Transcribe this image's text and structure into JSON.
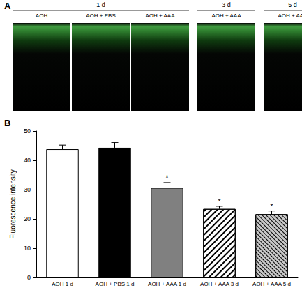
{
  "panel_a": {
    "label": "A",
    "groups": [
      {
        "label": "1 d",
        "images": [
          "AOH",
          "AOH + PBS",
          "AOH + AAA"
        ]
      },
      {
        "label": "3 d",
        "images": [
          "AOH + AAA"
        ]
      },
      {
        "label": "5 d",
        "images": [
          "AOH + AAA"
        ]
      }
    ]
  },
  "chart_data": {
    "type": "bar",
    "panel_label": "B",
    "y_label": "Fluorescence intensity",
    "categories": [
      "AOH 1 d",
      "AOH + PBS 1 d",
      "AOH + AAA 1 d",
      "AOH + AAA 3 d",
      "AOH + AAA 5 d"
    ],
    "values": [
      43.8,
      44.3,
      30.6,
      23.4,
      21.6
    ],
    "errors": [
      1.4,
      1.8,
      1.8,
      0.9,
      1.1
    ],
    "significance": [
      null,
      null,
      "*",
      "*",
      "*"
    ],
    "colors": [
      "#ffffff",
      "#000000",
      "#808080",
      "#ffffff",
      "#c8c8c8"
    ],
    "ylim": [
      0,
      50
    ],
    "yticks": [
      0,
      10,
      20,
      30,
      40,
      50
    ],
    "grid": false
  }
}
